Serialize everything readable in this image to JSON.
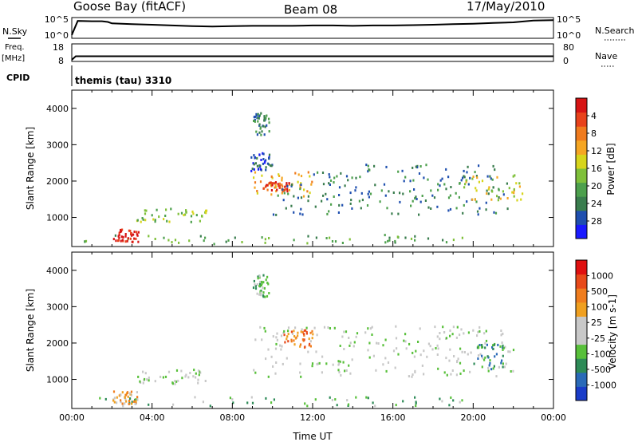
{
  "header": {
    "station": "Goose Bay (fitACF)",
    "beam": "Beam 08",
    "date": "17/May/2010"
  },
  "colors": {
    "data_line": "#000000",
    "background": "#ffffff",
    "power_palette": [
      "#1a1aff",
      "#1f4faf",
      "#3a7d4e",
      "#4da04d",
      "#7fc03a",
      "#d7d51c",
      "#f5a623",
      "#f07b1e",
      "#e8421b",
      "#d71414"
    ],
    "velocity_palette": [
      "#1a3cc8",
      "#2a6ab8",
      "#2e8b57",
      "#58c03a",
      "#c8c8c8",
      "#c8c8c8",
      "#f0a020",
      "#f07d1e",
      "#e84a1a",
      "#e01010"
    ]
  },
  "chart_data": [
    {
      "type": "line",
      "title": "N.Sky / N.Search",
      "left_label": "N.Sky",
      "right_label": "N.Search",
      "left_ticks": [
        "10^5",
        "10^0"
      ],
      "right_ticks": [
        "10^5",
        "10^0"
      ],
      "x_hours": [
        0,
        0.3,
        1,
        1.5,
        1.8,
        2,
        3,
        4,
        5,
        6,
        7,
        8,
        9,
        10,
        11,
        12,
        13,
        14,
        15,
        16,
        17,
        18,
        19,
        20,
        20.5,
        21,
        22,
        23,
        24
      ],
      "values_log": [
        0.5,
        4.5,
        4.4,
        4.4,
        4.2,
        3.8,
        3.6,
        3.4,
        3.2,
        3.0,
        2.9,
        3.0,
        3.1,
        3.1,
        3.1,
        3.2,
        3.2,
        3.1,
        3.2,
        3.2,
        3.3,
        3.4,
        3.6,
        3.7,
        3.8,
        3.9,
        4.1,
        4.6,
        4.7
      ],
      "ylim": [
        0,
        5
      ]
    },
    {
      "type": "line",
      "title": "Freq. / Nave",
      "left_label": "Freq.",
      "left_unit": "[MHz]",
      "right_label": "Nave",
      "left_ticks": [
        "18",
        "8"
      ],
      "right_ticks": [
        "80",
        "0"
      ],
      "x_hours": [
        0,
        0.2,
        24
      ],
      "values": [
        8,
        10.5,
        10.5
      ],
      "ylim": [
        8,
        18
      ]
    },
    {
      "type": "table",
      "label": "CPID",
      "text": "themis (tau) 3310"
    },
    {
      "type": "heatmap",
      "title": "Power",
      "ylabel": "Slant Range [km]",
      "y_ticks": [
        "1000",
        "2000",
        "3000",
        "4000"
      ],
      "ylim": [
        200,
        4500
      ],
      "xlim": [
        0,
        24
      ],
      "colorbar_label": "Power [dB]",
      "colorbar_ticks": [
        "4",
        "8",
        "12",
        "16",
        "20",
        "24",
        "28"
      ],
      "regions": [
        {
          "t0": 0.5,
          "t1": 19.5,
          "r0": 300,
          "r1": 550,
          "level": 3
        },
        {
          "t0": 2.0,
          "t1": 3.3,
          "r0": 350,
          "r1": 700,
          "level": 9
        },
        {
          "t0": 3.2,
          "t1": 6.7,
          "r0": 900,
          "r1": 1300,
          "level": 4
        },
        {
          "t0": 9.0,
          "t1": 12.0,
          "r0": 1600,
          "r1": 2300,
          "level": 6
        },
        {
          "t0": 9.5,
          "t1": 10.8,
          "r0": 1750,
          "r1": 2000,
          "level": 8
        },
        {
          "t0": 10.0,
          "t1": 22.0,
          "r0": 1100,
          "r1": 2000,
          "level": 2
        },
        {
          "t0": 12.0,
          "t1": 21.5,
          "r0": 1900,
          "r1": 2500,
          "level": 2
        },
        {
          "t0": 19.5,
          "t1": 22.5,
          "r0": 1500,
          "r1": 2200,
          "level": 5
        },
        {
          "t0": 9.0,
          "t1": 9.8,
          "r0": 3300,
          "r1": 3900,
          "level": 2
        },
        {
          "t0": 8.9,
          "t1": 10.0,
          "r0": 2300,
          "r1": 2800,
          "level": 1
        }
      ]
    },
    {
      "type": "heatmap",
      "title": "Velocity",
      "ylabel": "Slant Range [km]",
      "xlabel": "Time UT",
      "x_ticks": [
        "00:00",
        "04:00",
        "08:00",
        "12:00",
        "16:00",
        "20:00",
        "00:00"
      ],
      "y_ticks": [
        "1000",
        "2000",
        "3000",
        "4000"
      ],
      "ylim": [
        200,
        4500
      ],
      "xlim": [
        0,
        24
      ],
      "colorbar_label": "Velocity [m s-1]",
      "colorbar_ticks": [
        "1000",
        "500",
        "100",
        "25",
        "-25",
        "-100",
        "-500",
        "-1000"
      ],
      "regions": [
        {
          "t0": 0.5,
          "t1": 19.5,
          "r0": 300,
          "r1": 550,
          "level": 3
        },
        {
          "t0": 2.0,
          "t1": 3.3,
          "r0": 350,
          "r1": 700,
          "level": 6
        },
        {
          "t0": 3.2,
          "t1": 6.7,
          "r0": 900,
          "r1": 1300,
          "level": 4
        },
        {
          "t0": 9.0,
          "t1": 22.0,
          "r0": 1100,
          "r1": 2500,
          "level": 4
        },
        {
          "t0": 10.5,
          "t1": 12.0,
          "r0": 1900,
          "r1": 2400,
          "level": 7
        },
        {
          "t0": 20.0,
          "t1": 21.5,
          "r0": 1300,
          "r1": 2000,
          "level": 2
        },
        {
          "t0": 9.0,
          "t1": 9.8,
          "r0": 3300,
          "r1": 3900,
          "level": 3
        }
      ]
    }
  ]
}
